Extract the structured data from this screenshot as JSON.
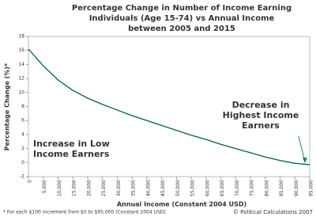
{
  "chart_data": {
    "type": "line",
    "title": [
      "Percentage Change in Number of Income Earning",
      "Individuals (Age 15-74) vs Annual Income",
      "between 2005 and 2015"
    ],
    "x_label": "Annual Income (Constant 2004 USD)",
    "y_label": "Percentage Change (%)*",
    "x": [
      0,
      5000,
      10000,
      15000,
      20000,
      25000,
      30000,
      35000,
      40000,
      45000,
      50000,
      55000,
      60000,
      65000,
      70000,
      75000,
      80000,
      85000,
      90000,
      95000
    ],
    "series": [
      {
        "name": "Percentage Change",
        "color": "#006633",
        "values": [
          16.2,
          13.8,
          11.8,
          10.3,
          9.2,
          8.3,
          7.5,
          6.7,
          6.0,
          5.3,
          4.6,
          3.9,
          3.3,
          2.6,
          2.0,
          1.4,
          0.8,
          0.3,
          -0.1,
          -0.3
        ]
      }
    ],
    "xlim": [
      0,
      95000
    ],
    "xticks": [
      0,
      {
        "value": 5000,
        "label": "5,000"
      },
      {
        "value": 10000,
        "label": "10,000"
      },
      {
        "value": 15000,
        "label": "15,000"
      },
      {
        "value": 20000,
        "label": "20,000"
      },
      {
        "value": 25000,
        "label": "25,000"
      },
      {
        "value": 30000,
        "label": "30,000"
      },
      {
        "value": 35000,
        "label": "35,000"
      },
      {
        "value": 40000,
        "label": "40,000"
      },
      {
        "value": 45000,
        "label": "45,000"
      },
      {
        "value": 50000,
        "label": "50,000"
      },
      {
        "value": 55000,
        "label": "55,000"
      },
      {
        "value": 60000,
        "label": "60,000"
      },
      {
        "value": 65000,
        "label": "65,000"
      },
      {
        "value": 70000,
        "label": "70,000"
      },
      {
        "value": 75000,
        "label": "75,000"
      },
      {
        "value": 80000,
        "label": "80,000"
      },
      {
        "value": 85000,
        "label": "85,000"
      },
      {
        "value": 90000,
        "label": "90,000"
      },
      {
        "value": 95000,
        "label": "95,000"
      }
    ],
    "ylim": [
      -2,
      18
    ],
    "yticks": [
      -2,
      0,
      2,
      4,
      6,
      8,
      10,
      12,
      14,
      16,
      18
    ],
    "grid": false,
    "annotations": [
      {
        "lines": [
          "Increase in Low",
          "Income Earners"
        ],
        "color": "#1e8a3c"
      },
      {
        "lines": [
          "Decrease in",
          "Highest Income",
          "Earners"
        ],
        "color": "#1e8a3c"
      }
    ],
    "footnote": "* For each $100 increment from $0 to $95,000 (Constant 2004 USD)",
    "credit": "© Political Calculations 2007"
  }
}
